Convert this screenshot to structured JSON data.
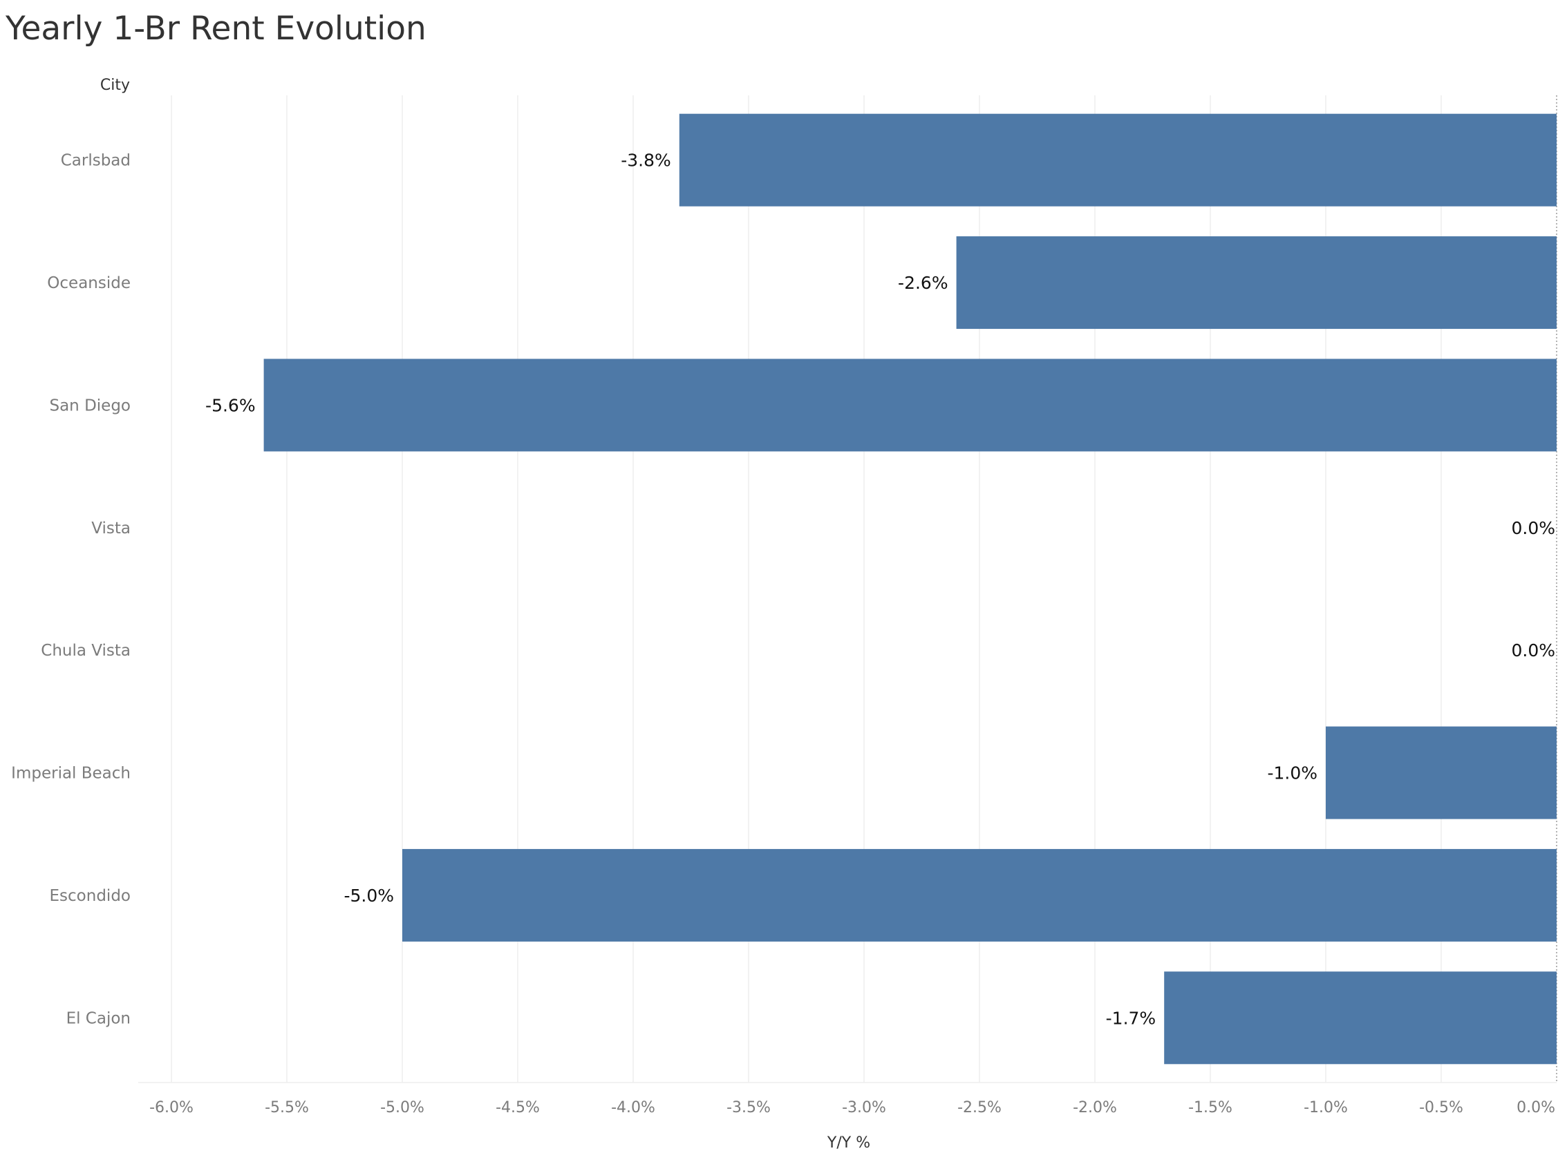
{
  "chart_data": {
    "type": "bar",
    "orientation": "horizontal",
    "title": "Yearly 1-Br Rent Evolution",
    "category_axis_title": "City",
    "value_axis_title": "Y/Y %",
    "categories": [
      "Carlsbad",
      "Oceanside",
      "San Diego",
      "Vista",
      "Chula Vista",
      "Imperial Beach",
      "Escondido",
      "El Cajon"
    ],
    "values": [
      -3.8,
      -2.6,
      -5.6,
      0.0,
      0.0,
      -1.0,
      -5.0,
      -1.7
    ],
    "data_labels": [
      "-3.8%",
      "-2.6%",
      "-5.6%",
      "0.0%",
      "0.0%",
      "-1.0%",
      "-5.0%",
      "-1.7%"
    ],
    "xlim": [
      -6.0,
      0.0
    ],
    "ticks": [
      -6.0,
      -5.5,
      -5.0,
      -4.5,
      -4.0,
      -3.5,
      -3.0,
      -2.5,
      -2.0,
      -1.5,
      -1.0,
      -0.5,
      0.0
    ],
    "tick_labels": [
      "-6.0%",
      "-5.5%",
      "-5.0%",
      "-4.5%",
      "-4.0%",
      "-3.5%",
      "-3.0%",
      "-2.5%",
      "-2.0%",
      "-1.5%",
      "-1.0%",
      "-0.5%",
      "0.0%"
    ],
    "grid": true,
    "legend": "none",
    "colors": {
      "bar": "#4e79a7",
      "grid": "#eeeeee",
      "zero_line": "#9a9a9a"
    }
  }
}
